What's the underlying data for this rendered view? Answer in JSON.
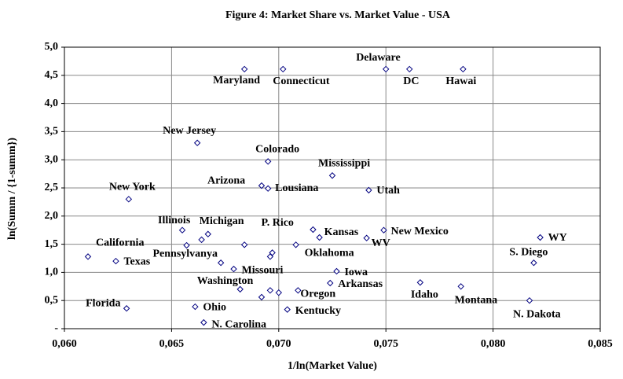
{
  "chart_data": {
    "type": "scatter",
    "title": "Figure 4: Market Share vs. Market  Value - USA",
    "x_label": "1/ln(Market Value)",
    "y_label": "ln(Summ / {1-summ})",
    "xlim": [
      0.06,
      0.085
    ],
    "ylim": [
      0,
      5
    ],
    "xticks": [
      {
        "value": 0.06,
        "label": "0,060"
      },
      {
        "value": 0.065,
        "label": "0,065"
      },
      {
        "value": 0.07,
        "label": "0,070"
      },
      {
        "value": 0.075,
        "label": "0,075"
      },
      {
        "value": 0.08,
        "label": "0,080"
      },
      {
        "value": 0.085,
        "label": "0,085"
      }
    ],
    "yticks": [
      {
        "value": 0,
        "label": "-"
      },
      {
        "value": 0.5,
        "label": "0,5"
      },
      {
        "value": 1,
        "label": "1,0"
      },
      {
        "value": 1.5,
        "label": "1,5"
      },
      {
        "value": 2,
        "label": "2,0"
      },
      {
        "value": 2.5,
        "label": "2,5"
      },
      {
        "value": 3,
        "label": "3,0"
      },
      {
        "value": 3.5,
        "label": "3,5"
      },
      {
        "value": 4,
        "label": "4,0"
      },
      {
        "value": 4.5,
        "label": "4,5"
      },
      {
        "value": 5,
        "label": "5,0"
      }
    ],
    "grid": true,
    "series": [
      {
        "color": "#000080",
        "x": [
          0.0684,
          0.0702,
          0.075,
          0.0761,
          0.0786,
          0.0662,
          0.0695,
          0.0725,
          0.0692,
          0.0695,
          0.0742,
          0.063,
          0.0655,
          0.0667,
          0.0716,
          0.0719,
          0.0749,
          0.0741,
          0.0822,
          0.0611,
          0.0624,
          0.0657,
          0.0708,
          0.0679,
          0.0819,
          0.0727,
          0.0682,
          0.0709,
          0.0724,
          0.0766,
          0.0785,
          0.0817,
          0.0704,
          0.0629,
          0.0661,
          0.0665,
          0.0664,
          0.0684,
          0.0697,
          0.0696,
          0.0673,
          0.0692,
          0.0696,
          0.07
        ],
        "values": [
          4.61,
          4.61,
          4.61,
          4.61,
          4.61,
          3.3,
          2.97,
          2.72,
          2.54,
          2.49,
          2.46,
          2.3,
          1.75,
          1.68,
          1.76,
          1.62,
          1.75,
          1.61,
          1.62,
          1.28,
          1.2,
          1.48,
          1.49,
          1.06,
          1.17,
          1.02,
          0.7,
          0.68,
          0.81,
          0.82,
          0.75,
          0.5,
          0.34,
          0.36,
          0.39,
          0.11,
          1.58,
          1.49,
          1.35,
          1.28,
          1.17,
          0.56,
          0.68,
          0.64
        ],
        "point_labels": [
          "Maryland",
          "Connecticut",
          "Delaware",
          "DC",
          "Hawai",
          "New Jersey",
          "Colorado",
          "Mississippi",
          "Arizona",
          "Lousiana",
          "Utah",
          "New York",
          "Illinois",
          "Michigan",
          "P. Rico",
          "Kansas",
          "New Mexico",
          "WV",
          "WY",
          "California",
          "Texas",
          "Pennsylvanya",
          "Oklahoma",
          "Missouri",
          "S. Diego",
          "Iowa",
          "Washington",
          "Oregon",
          "Arkansas",
          "Idaho",
          "Montana",
          "N. Dakota",
          "Kentucky",
          "Florida",
          "Ohio",
          "N. Carolina",
          null,
          null,
          null,
          null,
          null,
          null,
          null,
          null
        ]
      }
    ]
  }
}
